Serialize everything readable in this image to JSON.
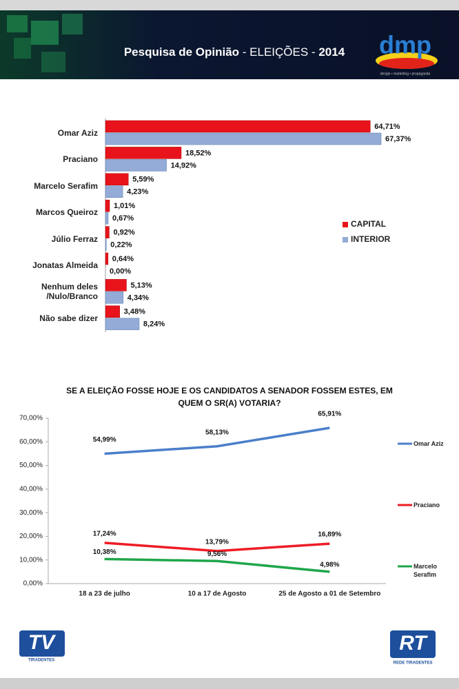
{
  "header": {
    "title": "Pesquisa de Opinião",
    "subtitle": "- ELEIÇÕES -",
    "year": "2014",
    "logo": "dmp",
    "logo_tagline": "design • marketing • propaganda"
  },
  "chart_data": [
    {
      "type": "bar",
      "orientation": "horizontal",
      "legend": "right",
      "categories": [
        "Omar Aziz",
        "Praciano",
        "Marcelo Serafim",
        "Marcos Queiroz",
        "Júlio Ferraz",
        "Jonatas Almeida",
        "Nenhum deles /Nulo/Branco",
        "Não sabe dizer"
      ],
      "series": [
        {
          "name": "CAPITAL",
          "color": "#e8131b",
          "values": [
            64.71,
            18.52,
            5.59,
            1.01,
            0.92,
            0.64,
            5.13,
            3.48
          ],
          "value_labels": [
            "64,71%",
            "18,52%",
            "5,59%",
            "1,01%",
            "0,92%",
            "0,64%",
            "5,13%",
            "3,48%"
          ]
        },
        {
          "name": "INTERIOR",
          "color": "#93abd6",
          "values": [
            67.37,
            14.92,
            4.23,
            0.67,
            0.22,
            0.0,
            4.34,
            8.24
          ],
          "value_labels": [
            "67,37%",
            "14,92%",
            "4,23%",
            "0,67%",
            "0,22%",
            "0,00%",
            "4,34%",
            "8,24%"
          ]
        }
      ]
    },
    {
      "type": "line",
      "legend": "right",
      "title": "SE A ELEIÇÃO FOSSE HOJE E OS CANDIDATOS A SENADOR FOSSEM ESTES, EM QUEM O SR(A) VOTARIA?",
      "categories": [
        "18 a 23 de julho",
        "10 a 17 de Agosto",
        "25 de Agosto a 01 de Setembro"
      ],
      "series": [
        {
          "name": "Omar Aziz",
          "color": "#4a7fc9",
          "values": [
            54.99,
            58.13,
            65.91
          ],
          "value_labels": [
            "54,99%",
            "58,13%",
            "65,91%"
          ]
        },
        {
          "name": "Praciano",
          "color": "#ee1c25",
          "values": [
            17.24,
            13.79,
            16.89
          ],
          "value_labels": [
            "17,24%",
            "13,79%",
            "16,89%"
          ]
        },
        {
          "name": "Marcelo Serafim",
          "color": "#1fa64a",
          "values": [
            10.38,
            9.56,
            4.98
          ],
          "value_labels": [
            "10,38%",
            "9,56%",
            "4,98%"
          ]
        }
      ],
      "ylim": [
        0,
        70
      ],
      "yticks": [
        {
          "value": 0,
          "label": "0,00%"
        },
        {
          "value": 10,
          "label": "10,00%"
        },
        {
          "value": 20,
          "label": "20,00%"
        },
        {
          "value": 30,
          "label": "30,00%"
        },
        {
          "value": 40,
          "label": "40,00%"
        },
        {
          "value": 50,
          "label": "50,00%"
        },
        {
          "value": 60,
          "label": "60,00%"
        },
        {
          "value": 70,
          "label": "70,00%"
        }
      ]
    }
  ],
  "footer": {
    "left_logo": "TV",
    "left_logo_caption": "TIRADENTES",
    "right_logo": "RT",
    "right_logo_caption": "REDE TIRADENTES"
  }
}
